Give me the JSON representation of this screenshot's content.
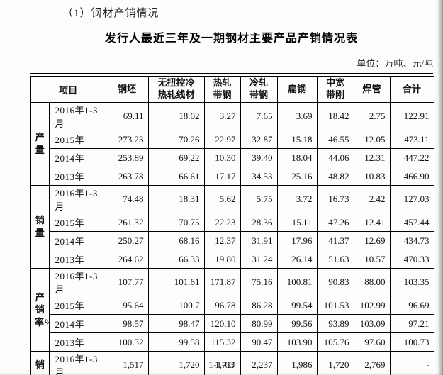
{
  "page": {
    "heading": "（1）钢材产销情况",
    "title": "发行人最近三年及一期钢材主要产品产销情况表",
    "unit_label": "单位：万吨、元/吨",
    "page_number": "1-1-63"
  },
  "table": {
    "item_header": "项目",
    "columns": [
      "钢坯",
      "无扭控冷\n热轧线材",
      "热轧\n带钢",
      "冷轧\n带钢",
      "扁钢",
      "中宽\n带刚",
      "焊管",
      "合计"
    ],
    "sections": [
      {
        "label": "产量",
        "rows": [
          {
            "period": "2016年1-3月",
            "values": [
              "69.11",
              "18.02",
              "3.27",
              "7.65",
              "3.69",
              "18.42",
              "2.75",
              "122.91"
            ]
          },
          {
            "period": "2015年",
            "values": [
              "273.23",
              "70.26",
              "22.97",
              "32.87",
              "15.18",
              "46.55",
              "12.05",
              "473.11"
            ]
          },
          {
            "period": "2014年",
            "values": [
              "253.89",
              "69.22",
              "10.30",
              "39.40",
              "18.04",
              "44.06",
              "12.31",
              "447.22"
            ]
          },
          {
            "period": "2013年",
            "values": [
              "263.78",
              "66.61",
              "17.17",
              "34.53",
              "25.16",
              "48.82",
              "10.83",
              "466.90"
            ]
          }
        ]
      },
      {
        "label": "销量",
        "rows": [
          {
            "period": "2016年1-3月",
            "values": [
              "74.48",
              "18.31",
              "5.62",
              "5.75",
              "3.72",
              "16.73",
              "2.42",
              "127.03"
            ]
          },
          {
            "period": "2015年",
            "values": [
              "261.32",
              "70.75",
              "22.23",
              "28.36",
              "15.11",
              "47.26",
              "12.41",
              "457.44"
            ]
          },
          {
            "period": "2014年",
            "values": [
              "250.27",
              "68.16",
              "12.37",
              "31.91",
              "17.96",
              "41.37",
              "12.69",
              "434.73"
            ]
          },
          {
            "period": "2013年",
            "values": [
              "264.62",
              "66.33",
              "19.80",
              "31.24",
              "26.14",
              "51.63",
              "10.57",
              "470.33"
            ]
          }
        ]
      },
      {
        "label": "产销率%",
        "rows": [
          {
            "period": "2016年1-3月",
            "values": [
              "107.77",
              "101.61",
              "171.87",
              "75.16",
              "100.81",
              "90.83",
              "88.00",
              "103.35"
            ]
          },
          {
            "period": "2015年",
            "values": [
              "95.64",
              "100.7",
              "96.78",
              "86.28",
              "99.54",
              "101.53",
              "102.99",
              "96.69"
            ]
          },
          {
            "period": "2014年",
            "values": [
              "98.57",
              "98.47",
              "120.10",
              "80.99",
              "99.56",
              "93.89",
              "103.09",
              "97.21"
            ]
          },
          {
            "period": "2013年",
            "values": [
              "100.32",
              "99.58",
              "115.32",
              "90.47",
              "103.90",
              "105.76",
              "97.60",
              "100.73"
            ]
          }
        ]
      },
      {
        "label": "销",
        "rows": [
          {
            "period": "2016年1-3月",
            "values": [
              "1,517",
              "1,720",
              "1,717",
              "2,237",
              "1,986",
              "1,720",
              "2,769",
              "-"
            ]
          }
        ]
      }
    ]
  }
}
